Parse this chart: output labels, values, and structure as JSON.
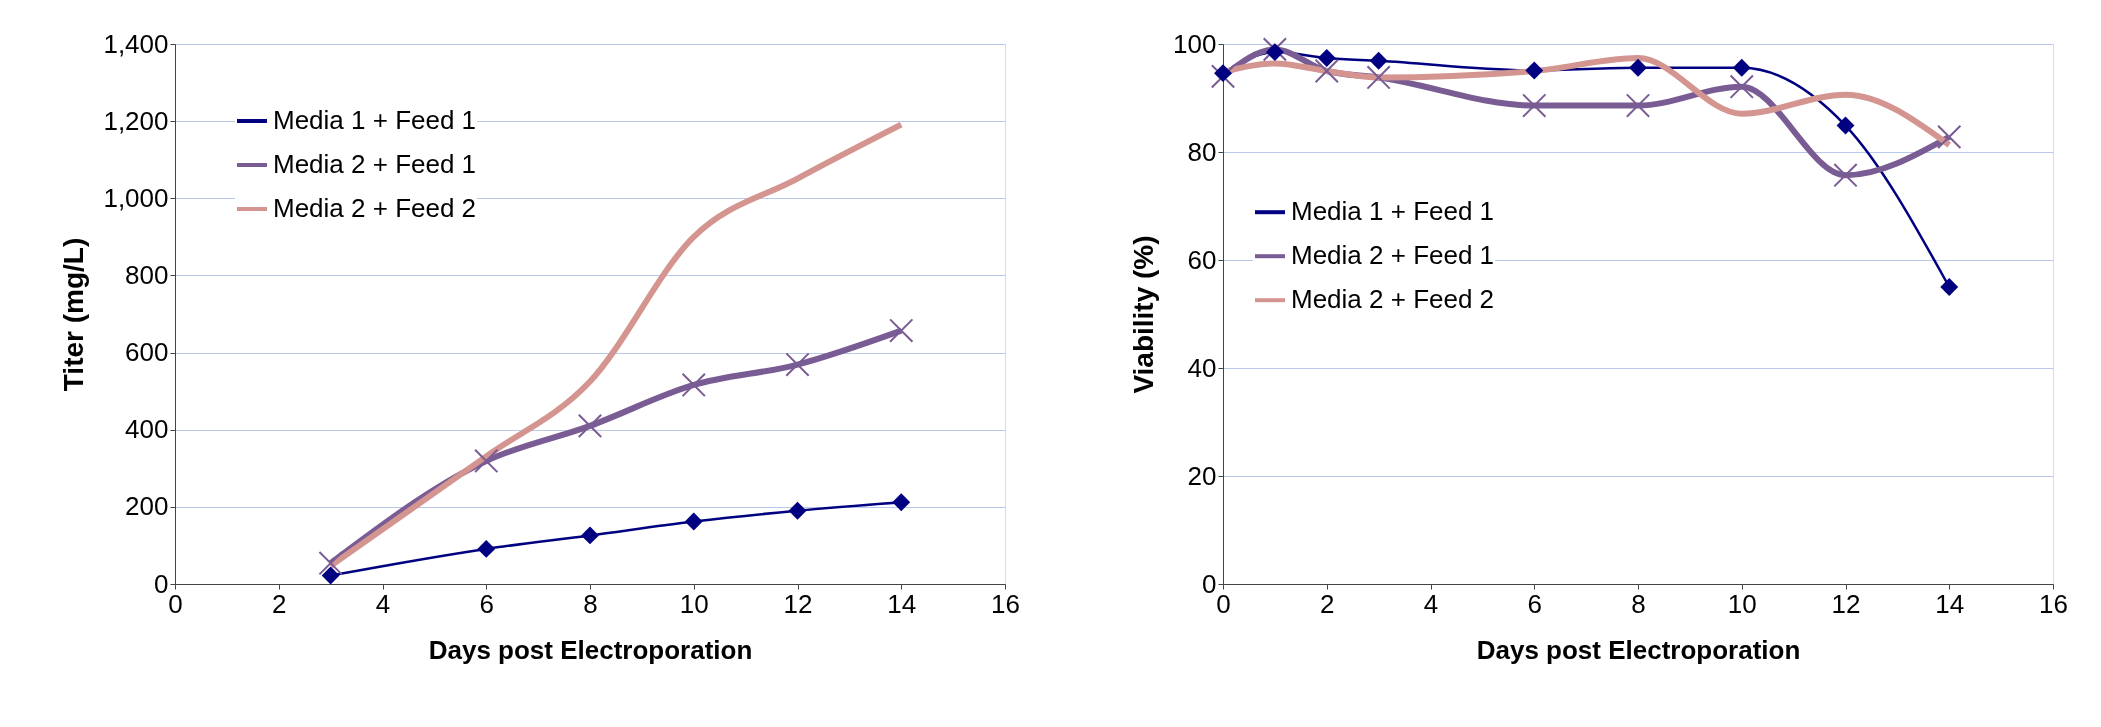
{
  "chart_data": [
    {
      "type": "line",
      "xlabel": "Days post Electroporation",
      "ylabel": "Titer (mg/L)",
      "xlim": [
        0,
        16
      ],
      "xticks": [
        0,
        2,
        4,
        6,
        8,
        10,
        12,
        14,
        16
      ],
      "ylim": [
        0,
        1400
      ],
      "yticks": [
        0,
        200,
        400,
        600,
        800,
        {
          "value": 1000,
          "label": "1,000"
        },
        {
          "value": 1200,
          "label": "1,200"
        },
        {
          "value": 1400,
          "label": "1,400"
        }
      ],
      "grid": "y",
      "legend": "top left",
      "series": [
        {
          "name": "Media 1 + Feed 1",
          "color": "#000080",
          "marker": "diamond",
          "x": [
            3,
            6,
            8,
            10,
            12,
            14
          ],
          "values": [
            22,
            91,
            126,
            162,
            190,
            212
          ]
        },
        {
          "name": "Media 2 + Feed 1",
          "color": "#7a5c94",
          "marker": "cross",
          "x": [
            3,
            6,
            8,
            10,
            12,
            14
          ],
          "values": [
            54,
            319,
            410,
            516,
            569,
            657
          ]
        },
        {
          "name": "Media 2 + Feed 2",
          "color": "#d49490",
          "marker": "none",
          "x": [
            3,
            6,
            8,
            10,
            12,
            14
          ],
          "values": [
            47,
            331,
            525,
            900,
            1051,
            1191
          ]
        }
      ]
    },
    {
      "type": "line",
      "xlabel": "Days post Electroporation",
      "ylabel": "Viability (%)",
      "xlim": [
        0,
        16
      ],
      "xticks": [
        0,
        2,
        4,
        6,
        8,
        10,
        12,
        14,
        16
      ],
      "ylim": [
        0,
        100
      ],
      "yticks": [
        0,
        20,
        40,
        60,
        80,
        100
      ],
      "grid": "y",
      "legend": "left",
      "series": [
        {
          "name": "Media 1 + Feed 1",
          "color": "#000080",
          "marker": "diamond",
          "x": [
            0,
            1,
            2,
            3,
            6,
            8,
            10,
            12,
            14
          ],
          "values": [
            94.6,
            98.5,
            97.4,
            96.9,
            95.1,
            95.6,
            95.6,
            84.9,
            55
          ]
        },
        {
          "name": "Media 2 + Feed 1",
          "color": "#7a5c94",
          "marker": "cross",
          "x": [
            0,
            1,
            2,
            3,
            6,
            8,
            10,
            12,
            14
          ],
          "values": [
            94,
            99,
            95,
            93.8,
            88.6,
            88.6,
            92.1,
            75.7,
            82.8
          ]
        },
        {
          "name": "Media 2 + Feed 2",
          "color": "#d49490",
          "marker": "none",
          "x": [
            0,
            1,
            2,
            3,
            6,
            8,
            10,
            12,
            14
          ],
          "values": [
            94.8,
            96.4,
            95,
            93.8,
            95,
            97.4,
            87.1,
            90.6,
            81.3
          ]
        }
      ]
    }
  ]
}
